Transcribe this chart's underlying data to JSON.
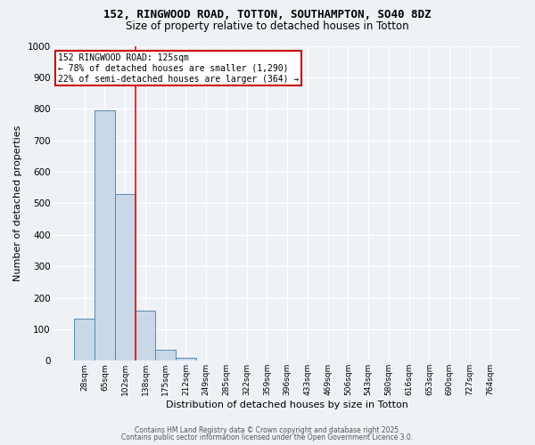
{
  "title1": "152, RINGWOOD ROAD, TOTTON, SOUTHAMPTON, SO40 8DZ",
  "title2": "Size of property relative to detached houses in Totton",
  "xlabel": "Distribution of detached houses by size in Totton",
  "ylabel": "Number of detached properties",
  "bin_labels": [
    "28sqm",
    "65sqm",
    "102sqm",
    "138sqm",
    "175sqm",
    "212sqm",
    "249sqm",
    "285sqm",
    "322sqm",
    "359sqm",
    "396sqm",
    "433sqm",
    "469sqm",
    "506sqm",
    "543sqm",
    "580sqm",
    "616sqm",
    "653sqm",
    "690sqm",
    "727sqm",
    "764sqm"
  ],
  "bar_heights": [
    135,
    795,
    530,
    160,
    35,
    10,
    0,
    0,
    0,
    0,
    0,
    0,
    0,
    0,
    0,
    0,
    0,
    0,
    0,
    0,
    0
  ],
  "bar_color": "#c8d8e8",
  "bar_edge_color": "#5a8ab0",
  "annotation_title": "152 RINGWOOD ROAD: 125sqm",
  "annotation_line1": "← 78% of detached houses are smaller (1,290)",
  "annotation_line2": "22% of semi-detached houses are larger (364) →",
  "annotation_box_color": "#ffffff",
  "annotation_border_color": "#cc0000",
  "ylim": [
    0,
    1000
  ],
  "yticks": [
    0,
    100,
    200,
    300,
    400,
    500,
    600,
    700,
    800,
    900,
    1000
  ],
  "background_color": "#eef2f7",
  "grid_color": "#ffffff",
  "footer1": "Contains HM Land Registry data © Crown copyright and database right 2025.",
  "footer2": "Contains public sector information licensed under the Open Government Licence 3.0."
}
